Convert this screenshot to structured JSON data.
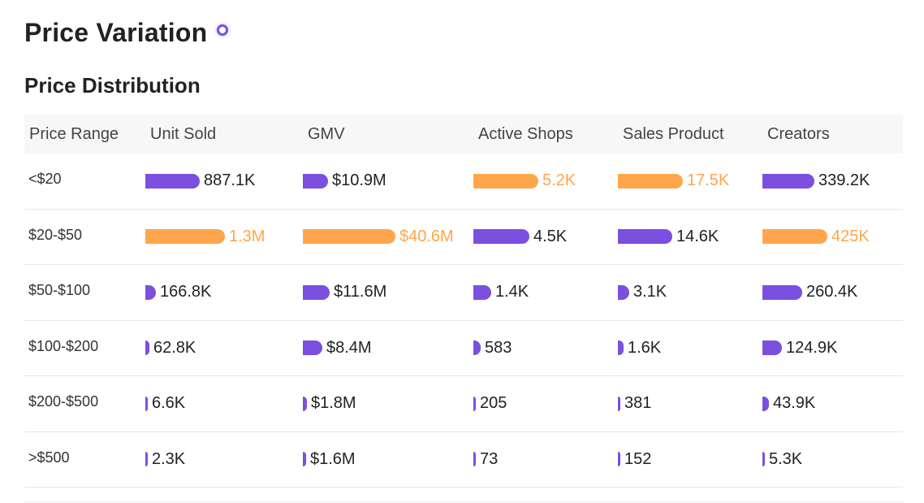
{
  "page_title": "Price Variation",
  "section_title": "Price Distribution",
  "colors": {
    "default_bar": "#7b4fe0",
    "max_bar": "#ffa64d"
  },
  "chart_data": {
    "type": "table",
    "columns": [
      "Price Range",
      "Unit Sold",
      "GMV",
      "Active Shops",
      "Sales Product",
      "Creators"
    ],
    "rows": [
      {
        "range": "<$20",
        "cells": [
          {
            "label": "887.1K",
            "value": 887100,
            "highlight": false
          },
          {
            "label": "$10.9M",
            "value": 10.9,
            "highlight": false
          },
          {
            "label": "5.2K",
            "value": 5200,
            "highlight": true
          },
          {
            "label": "17.5K",
            "value": 17500,
            "highlight": true
          },
          {
            "label": "339.2K",
            "value": 339200,
            "highlight": false
          }
        ]
      },
      {
        "range": "$20-$50",
        "cells": [
          {
            "label": "1.3M",
            "value": 1300000,
            "highlight": true
          },
          {
            "label": "$40.6M",
            "value": 40.6,
            "highlight": true
          },
          {
            "label": "4.5K",
            "value": 4500,
            "highlight": false
          },
          {
            "label": "14.6K",
            "value": 14600,
            "highlight": false
          },
          {
            "label": "425K",
            "value": 425000,
            "highlight": true
          }
        ]
      },
      {
        "range": "$50-$100",
        "cells": [
          {
            "label": "166.8K",
            "value": 166800,
            "highlight": false
          },
          {
            "label": "$11.6M",
            "value": 11.6,
            "highlight": false
          },
          {
            "label": "1.4K",
            "value": 1400,
            "highlight": false
          },
          {
            "label": "3.1K",
            "value": 3100,
            "highlight": false
          },
          {
            "label": "260.4K",
            "value": 260400,
            "highlight": false
          }
        ]
      },
      {
        "range": "$100-$200",
        "cells": [
          {
            "label": "62.8K",
            "value": 62800,
            "highlight": false
          },
          {
            "label": "$8.4M",
            "value": 8.4,
            "highlight": false
          },
          {
            "label": "583",
            "value": 583,
            "highlight": false
          },
          {
            "label": "1.6K",
            "value": 1600,
            "highlight": false
          },
          {
            "label": "124.9K",
            "value": 124900,
            "highlight": false
          }
        ]
      },
      {
        "range": "$200-$500",
        "cells": [
          {
            "label": "6.6K",
            "value": 6600,
            "highlight": false
          },
          {
            "label": "$1.8M",
            "value": 1.8,
            "highlight": false
          },
          {
            "label": "205",
            "value": 205,
            "highlight": false
          },
          {
            "label": "381",
            "value": 381,
            "highlight": false
          },
          {
            "label": "43.9K",
            "value": 43900,
            "highlight": false
          }
        ]
      },
      {
        "range": ">$500",
        "cells": [
          {
            "label": "2.3K",
            "value": 2300,
            "highlight": false
          },
          {
            "label": "$1.6M",
            "value": 1.6,
            "highlight": false
          },
          {
            "label": "73",
            "value": 73,
            "highlight": false
          },
          {
            "label": "152",
            "value": 152,
            "highlight": false
          },
          {
            "label": "5.3K",
            "value": 5300,
            "highlight": false
          }
        ]
      }
    ]
  }
}
